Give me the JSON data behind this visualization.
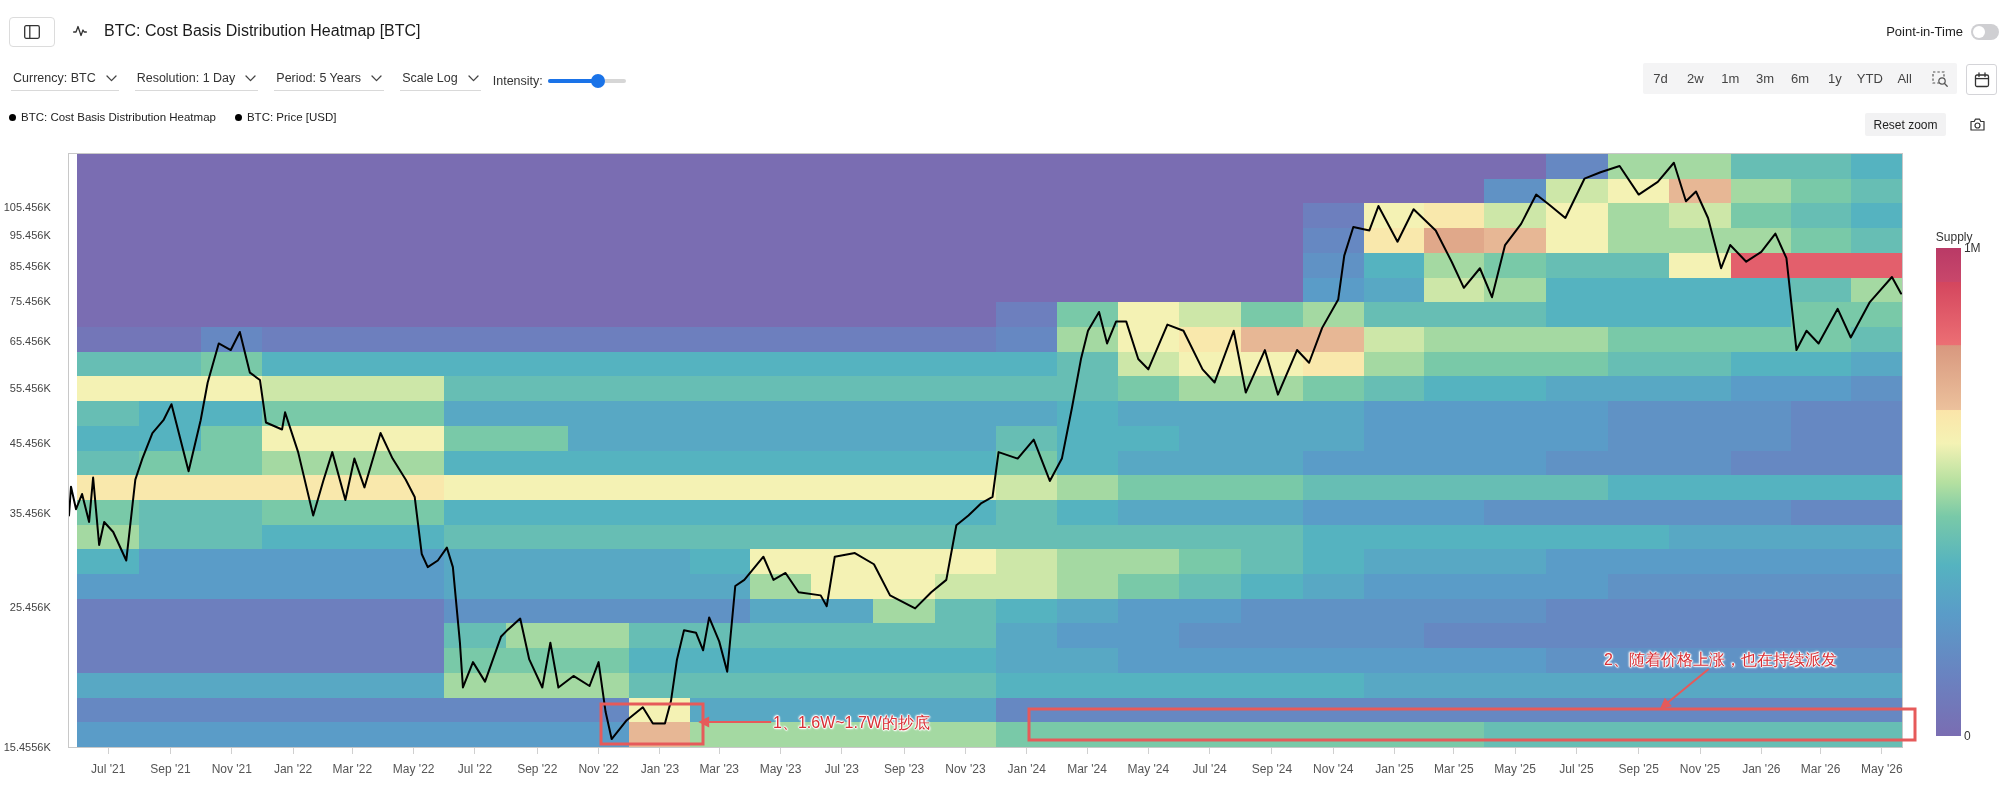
{
  "chart_data": {
    "type": "heatmap",
    "title": "BTC: Cost Basis Distribution Heatmap [BTC]",
    "clabel": "Supply",
    "x": [
      "2021-07",
      "2021-09",
      "2021-11",
      "2022-01",
      "2022-03",
      "2022-05",
      "2022-07",
      "2022-09",
      "2022-11",
      "2023-01",
      "2023-03",
      "2023-05",
      "2023-07",
      "2023-09",
      "2023-11",
      "2024-01",
      "2024-03",
      "2024-05",
      "2024-07",
      "2024-09",
      "2024-11",
      "2025-01",
      "2025-03",
      "2025-05",
      "2025-07",
      "2025-09",
      "2025-11",
      "2026-01",
      "2026-03",
      "2026-05"
    ],
    "cells": [
      [
        0,
        0,
        0,
        0,
        0,
        0,
        0,
        0,
        0,
        0,
        0,
        0,
        0,
        0,
        0,
        0,
        0,
        0,
        0,
        0,
        0,
        0,
        0,
        0,
        150000,
        500000,
        500000,
        400000,
        400000,
        350000
      ],
      [
        0,
        0,
        0,
        0,
        0,
        0,
        0,
        0,
        0,
        0,
        0,
        0,
        0,
        0,
        0,
        0,
        0,
        0,
        0,
        0,
        0,
        0,
        0,
        200000,
        550000,
        600000,
        700000,
        500000,
        450000,
        400000
      ],
      [
        0,
        0,
        0,
        0,
        0,
        0,
        0,
        0,
        0,
        0,
        0,
        0,
        0,
        0,
        0,
        0,
        0,
        0,
        0,
        0,
        100000,
        600000,
        650000,
        550000,
        600000,
        500000,
        550000,
        450000,
        400000,
        350000
      ],
      [
        0,
        0,
        0,
        0,
        0,
        0,
        0,
        0,
        0,
        0,
        0,
        0,
        0,
        0,
        0,
        0,
        0,
        0,
        0,
        0,
        150000,
        650000,
        750000,
        700000,
        600000,
        500000,
        500000,
        500000,
        450000,
        400000
      ],
      [
        0,
        0,
        0,
        0,
        0,
        0,
        0,
        0,
        0,
        0,
        0,
        0,
        0,
        0,
        0,
        0,
        0,
        0,
        0,
        0,
        200000,
        350000,
        500000,
        450000,
        400000,
        400000,
        600000,
        850000,
        850000,
        850000
      ],
      [
        0,
        0,
        0,
        0,
        0,
        0,
        0,
        0,
        0,
        0,
        0,
        0,
        0,
        0,
        0,
        0,
        0,
        0,
        0,
        0,
        250000,
        300000,
        550000,
        500000,
        350000,
        350000,
        350000,
        350000,
        400000,
        500000
      ],
      [
        0,
        0,
        0,
        0,
        0,
        0,
        0,
        0,
        0,
        0,
        0,
        0,
        0,
        0,
        0,
        100000,
        450000,
        600000,
        550000,
        450000,
        500000,
        400000,
        400000,
        400000,
        350000,
        350000,
        350000,
        350000,
        450000,
        450000
      ],
      [
        50000,
        50000,
        150000,
        100000,
        100000,
        100000,
        100000,
        100000,
        100000,
        100000,
        100000,
        100000,
        100000,
        100000,
        100000,
        150000,
        500000,
        600000,
        650000,
        700000,
        700000,
        550000,
        500000,
        500000,
        500000,
        450000,
        450000,
        450000,
        450000,
        400000
      ],
      [
        400000,
        400000,
        450000,
        350000,
        350000,
        350000,
        350000,
        350000,
        350000,
        350000,
        350000,
        350000,
        350000,
        350000,
        350000,
        350000,
        400000,
        550000,
        600000,
        600000,
        650000,
        500000,
        450000,
        450000,
        450000,
        400000,
        400000,
        350000,
        350000,
        300000
      ],
      [
        600000,
        600000,
        600000,
        550000,
        550000,
        550000,
        400000,
        400000,
        400000,
        400000,
        400000,
        400000,
        400000,
        400000,
        400000,
        400000,
        400000,
        450000,
        500000,
        500000,
        450000,
        400000,
        350000,
        350000,
        300000,
        300000,
        300000,
        250000,
        250000,
        200000
      ],
      [
        400000,
        350000,
        350000,
        450000,
        450000,
        450000,
        300000,
        300000,
        300000,
        300000,
        300000,
        300000,
        300000,
        300000,
        300000,
        300000,
        350000,
        300000,
        300000,
        300000,
        300000,
        250000,
        250000,
        250000,
        250000,
        200000,
        200000,
        200000,
        150000,
        150000
      ],
      [
        350000,
        350000,
        450000,
        600000,
        600000,
        600000,
        450000,
        450000,
        300000,
        300000,
        300000,
        300000,
        300000,
        300000,
        300000,
        400000,
        350000,
        350000,
        300000,
        300000,
        300000,
        250000,
        250000,
        250000,
        250000,
        200000,
        200000,
        200000,
        150000,
        150000
      ],
      [
        400000,
        450000,
        450000,
        500000,
        500000,
        500000,
        350000,
        350000,
        350000,
        350000,
        350000,
        350000,
        350000,
        350000,
        350000,
        450000,
        350000,
        300000,
        300000,
        300000,
        250000,
        250000,
        250000,
        250000,
        200000,
        200000,
        200000,
        150000,
        150000,
        150000
      ],
      [
        650000,
        650000,
        650000,
        650000,
        650000,
        650000,
        600000,
        600000,
        600000,
        600000,
        600000,
        600000,
        600000,
        600000,
        600000,
        550000,
        500000,
        450000,
        450000,
        450000,
        400000,
        400000,
        400000,
        400000,
        400000,
        350000,
        350000,
        350000,
        350000,
        350000
      ],
      [
        450000,
        400000,
        400000,
        450000,
        450000,
        450000,
        350000,
        350000,
        350000,
        350000,
        350000,
        350000,
        350000,
        350000,
        350000,
        400000,
        350000,
        300000,
        300000,
        300000,
        250000,
        250000,
        250000,
        200000,
        200000,
        200000,
        200000,
        200000,
        150000,
        150000
      ],
      [
        500000,
        400000,
        400000,
        350000,
        350000,
        350000,
        400000,
        400000,
        400000,
        400000,
        400000,
        400000,
        400000,
        400000,
        400000,
        400000,
        400000,
        400000,
        400000,
        400000,
        350000,
        350000,
        350000,
        350000,
        350000,
        350000,
        300000,
        300000,
        300000,
        300000
      ],
      [
        350000,
        250000,
        250000,
        250000,
        250000,
        250000,
        300000,
        300000,
        300000,
        300000,
        350000,
        600000,
        600000,
        600000,
        600000,
        550000,
        500000,
        500000,
        450000,
        400000,
        350000,
        300000,
        300000,
        300000,
        250000,
        250000,
        250000,
        250000,
        250000,
        250000
      ],
      [
        250000,
        250000,
        250000,
        250000,
        250000,
        250000,
        300000,
        300000,
        300000,
        300000,
        300000,
        500000,
        600000,
        600000,
        550000,
        550000,
        500000,
        450000,
        400000,
        350000,
        300000,
        250000,
        250000,
        250000,
        250000,
        200000,
        200000,
        200000,
        200000,
        200000
      ],
      [
        100000,
        100000,
        100000,
        100000,
        100000,
        100000,
        200000,
        200000,
        200000,
        200000,
        200000,
        300000,
        300000,
        500000,
        400000,
        350000,
        300000,
        250000,
        250000,
        200000,
        200000,
        200000,
        200000,
        200000,
        150000,
        150000,
        150000,
        150000,
        150000,
        150000
      ],
      [
        100000,
        100000,
        100000,
        100000,
        100000,
        100000,
        400000,
        500000,
        500000,
        400000,
        400000,
        400000,
        400000,
        400000,
        400000,
        300000,
        250000,
        250000,
        200000,
        200000,
        200000,
        200000,
        150000,
        150000,
        150000,
        150000,
        150000,
        150000,
        150000,
        150000
      ],
      [
        100000,
        100000,
        100000,
        100000,
        100000,
        100000,
        450000,
        450000,
        450000,
        350000,
        350000,
        350000,
        350000,
        350000,
        350000,
        300000,
        300000,
        250000,
        250000,
        250000,
        250000,
        250000,
        250000,
        250000,
        200000,
        200000,
        200000,
        200000,
        200000,
        200000
      ],
      [
        300000,
        300000,
        300000,
        300000,
        300000,
        300000,
        500000,
        500000,
        500000,
        400000,
        400000,
        400000,
        400000,
        400000,
        400000,
        350000,
        350000,
        350000,
        350000,
        350000,
        350000,
        300000,
        300000,
        300000,
        300000,
        300000,
        300000,
        300000,
        300000,
        300000
      ],
      [
        150000,
        150000,
        150000,
        150000,
        150000,
        150000,
        150000,
        150000,
        150000,
        600000,
        300000,
        300000,
        300000,
        300000,
        300000,
        150000,
        150000,
        150000,
        150000,
        150000,
        150000,
        150000,
        150000,
        150000,
        150000,
        150000,
        150000,
        150000,
        150000,
        150000
      ],
      [
        250000,
        250000,
        250000,
        250000,
        250000,
        250000,
        250000,
        250000,
        250000,
        700000,
        500000,
        500000,
        500000,
        500000,
        500000,
        450000,
        450000,
        450000,
        450000,
        450000,
        450000,
        450000,
        450000,
        400000,
        400000,
        400000,
        400000,
        400000,
        400000,
        400000
      ]
    ],
    "clim": [
      0,
      1000000
    ],
    "cticks": [
      0,
      {
        "value": 1000000,
        "label": "1M"
      }
    ],
    "series": [
      {
        "type": "line",
        "name": "BTC: Price [USD]",
        "color": "#000000",
        "x": [
          "2021-05-23",
          "2021-05-25",
          "2021-05-30",
          "2021-06-05",
          "2021-06-12",
          "2021-06-16",
          "2021-06-22",
          "2021-06-27",
          "2021-07-06",
          "2021-07-19",
          "2021-07-28",
          "2021-08-04",
          "2021-08-14",
          "2021-08-25",
          "2021-09-02",
          "2021-09-19",
          "2021-10-01",
          "2021-10-08",
          "2021-10-19",
          "2021-10-31",
          "2021-11-09",
          "2021-11-19",
          "2021-11-29",
          "2021-12-05",
          "2021-12-21",
          "2021-12-24",
          "2022-01-06",
          "2022-01-21",
          "2022-01-31",
          "2022-02-09",
          "2022-02-22",
          "2022-03-03",
          "2022-03-13",
          "2022-03-29",
          "2022-04-10",
          "2022-04-23",
          "2022-05-02",
          "2022-05-09",
          "2022-05-15",
          "2022-05-25",
          "2022-06-03",
          "2022-06-09",
          "2022-06-16",
          "2022-06-19",
          "2022-06-29",
          "2022-07-11",
          "2022-07-27",
          "2022-08-02",
          "2022-08-15",
          "2022-08-24",
          "2022-09-06",
          "2022-09-14",
          "2022-09-22",
          "2022-10-07",
          "2022-10-23",
          "2022-11-01",
          "2022-11-08",
          "2022-11-14",
          "2022-11-29",
          "2022-12-15",
          "2022-12-25",
          "2023-01-06",
          "2023-01-12",
          "2023-01-18",
          "2023-01-25",
          "2023-02-06",
          "2023-02-13",
          "2023-02-19",
          "2023-03-01",
          "2023-03-09",
          "2023-03-17",
          "2023-03-26",
          "2023-04-14",
          "2023-04-24",
          "2023-05-06",
          "2023-05-19",
          "2023-06-10",
          "2023-06-16",
          "2023-06-24",
          "2023-07-14",
          "2023-08-02",
          "2023-08-18",
          "2023-09-12",
          "2023-09-28",
          "2023-10-13",
          "2023-10-23",
          "2023-11-04",
          "2023-11-17",
          "2023-11-28",
          "2023-12-04",
          "2023-12-23",
          "2024-01-08",
          "2024-01-24",
          "2024-02-05",
          "2024-02-15",
          "2024-02-24",
          "2024-03-02",
          "2024-03-13",
          "2024-03-21",
          "2024-03-30",
          "2024-04-09",
          "2024-04-21",
          "2024-05-01",
          "2024-05-20",
          "2024-06-05",
          "2024-06-24",
          "2024-07-06",
          "2024-07-25",
          "2024-08-06",
          "2024-08-25",
          "2024-09-07",
          "2024-09-26",
          "2024-10-08",
          "2024-10-21",
          "2024-11-06",
          "2024-11-12",
          "2024-11-21",
          "2024-12-07",
          "2024-12-16",
          "2025-01-04",
          "2025-01-20",
          "2025-02-11",
          "2025-02-27",
          "2025-03-11",
          "2025-03-27",
          "2025-04-08",
          "2025-04-21",
          "2025-05-07",
          "2025-05-22",
          "2025-06-04",
          "2025-06-20",
          "2025-07-09",
          "2025-07-25",
          "2025-08-13",
          "2025-09-01",
          "2025-09-20",
          "2025-10-06",
          "2025-10-18",
          "2025-10-28",
          "2025-11-09",
          "2025-11-22",
          "2025-12-01",
          "2025-12-17",
          "2026-01-01",
          "2026-01-15",
          "2026-01-26",
          "2026-02-05",
          "2026-02-15",
          "2026-02-27",
          "2026-03-18",
          "2026-03-31",
          "2026-04-19",
          "2026-05-11",
          "2026-05-20"
        ],
        "values": [
          35200,
          39000,
          36000,
          38000,
          34400,
          40300,
          31700,
          34400,
          33200,
          30000,
          40000,
          43100,
          47200,
          49400,
          52300,
          41200,
          49400,
          56500,
          64900,
          63400,
          67600,
          58500,
          57000,
          49000,
          47800,
          50800,
          44100,
          35200,
          39800,
          44100,
          37200,
          43100,
          38900,
          47200,
          43100,
          40000,
          37600,
          30700,
          29300,
          30000,
          31400,
          29300,
          22400,
          19100,
          20900,
          19500,
          22900,
          23400,
          24400,
          21100,
          19100,
          22400,
          19100,
          19900,
          19200,
          20900,
          17500,
          15900,
          17000,
          17800,
          16800,
          16800,
          18200,
          21100,
          23400,
          23200,
          21800,
          24500,
          22500,
          20200,
          27400,
          28000,
          30400,
          28000,
          28700,
          26800,
          26500,
          25500,
          30400,
          30800,
          29600,
          26500,
          25300,
          26800,
          28000,
          34000,
          35200,
          36800,
          37600,
          44100,
          43100,
          46100,
          39800,
          43100,
          51600,
          61400,
          67900,
          72600,
          64900,
          70200,
          70200,
          61400,
          59200,
          69400,
          67900,
          59200,
          56500,
          67900,
          54500,
          63400,
          54100,
          63400,
          60600,
          68600,
          75900,
          88700,
          98200,
          97000,
          105800,
          93200,
          104600,
          97000,
          86700,
          79100,
          84800,
          76500,
          92100,
          99300,
          110200,
          106300,
          101400,
          116600,
          119300,
          122000,
          110200,
          115300,
          123400,
          107600,
          111400,
          101400,
          84800,
          92100,
          86800,
          89900,
          95900,
          87900,
          63400,
          67900,
          64900,
          73400,
          66300,
          75200,
          82200,
          77500
        ]
      }
    ],
    "xlim": [
      "2021-05-23",
      "2026-05-21"
    ],
    "xticks": [
      {
        "value": "2021-07",
        "label": "Jul '21"
      },
      {
        "value": "2021-09",
        "label": "Sep '21"
      },
      {
        "value": "2021-11",
        "label": "Nov '21"
      },
      {
        "value": "2022-01",
        "label": "Jan '22"
      },
      {
        "value": "2022-03",
        "label": "Mar '22"
      },
      {
        "value": "2022-05",
        "label": "May '22"
      },
      {
        "value": "2022-07",
        "label": "Jul '22"
      },
      {
        "value": "2022-09",
        "label": "Sep '22"
      },
      {
        "value": "2022-11",
        "label": "Nov '22"
      },
      {
        "value": "2023-01",
        "label": "Jan '23"
      },
      {
        "value": "2023-03",
        "label": "Mar '23"
      },
      {
        "value": "2023-05",
        "label": "May '23"
      },
      {
        "value": "2023-07",
        "label": "Jul '23"
      },
      {
        "value": "2023-09",
        "label": "Sep '23"
      },
      {
        "value": "2023-11",
        "label": "Nov '23"
      },
      {
        "value": "2024-01",
        "label": "Jan '24"
      },
      {
        "value": "2024-03",
        "label": "Mar '24"
      },
      {
        "value": "2024-05",
        "label": "May '24"
      },
      {
        "value": "2024-07",
        "label": "Jul '24"
      },
      {
        "value": "2024-09",
        "label": "Sep '24"
      },
      {
        "value": "2024-11",
        "label": "Nov '24"
      },
      {
        "value": "2025-01",
        "label": "Jan '25"
      },
      {
        "value": "2025-03",
        "label": "Mar '25"
      },
      {
        "value": "2025-05",
        "label": "May '25"
      },
      {
        "value": "2025-07",
        "label": "Jul '25"
      },
      {
        "value": "2025-09",
        "label": "Sep '25"
      },
      {
        "value": "2025-11",
        "label": "Nov '25"
      },
      {
        "value": "2026-01",
        "label": "Jan '26"
      },
      {
        "value": "2026-03",
        "label": "Mar '26"
      },
      {
        "value": "2026-05",
        "label": "May '26"
      }
    ],
    "ylim": [
      15455.6,
      127300
    ],
    "yticks": [
      {
        "value": 15455.6,
        "label": "15.4556K"
      },
      {
        "value": 25456,
        "label": "25.456K"
      },
      {
        "value": 35456,
        "label": "35.456K"
      },
      {
        "value": 45456,
        "label": "45.456K"
      },
      {
        "value": 55456,
        "label": "55.456K"
      },
      {
        "value": 65456,
        "label": "65.456K"
      },
      {
        "value": 75456,
        "label": "75.456K"
      },
      {
        "value": 85456,
        "label": "85.456K"
      },
      {
        "value": 95456,
        "label": "95.456K"
      },
      {
        "value": 105456,
        "label": "105.456K"
      }
    ],
    "log": true,
    "legend": "top left",
    "annotations": [
      "1、1.6W~1.7W的抄底",
      "2、随着价格上涨，也在持续派发",
      "BTC: Cost Basis Distribution Heatmap",
      "Currency: BTC",
      "Resolution: 1 Day",
      "Period: 5 Years",
      "Scale Log",
      "Intensity:",
      "Point-in-Time",
      "7d",
      "2w",
      "1m",
      "3m",
      "6m",
      "1y",
      "YTD",
      "All",
      "Reset zoom"
    ]
  }
}
